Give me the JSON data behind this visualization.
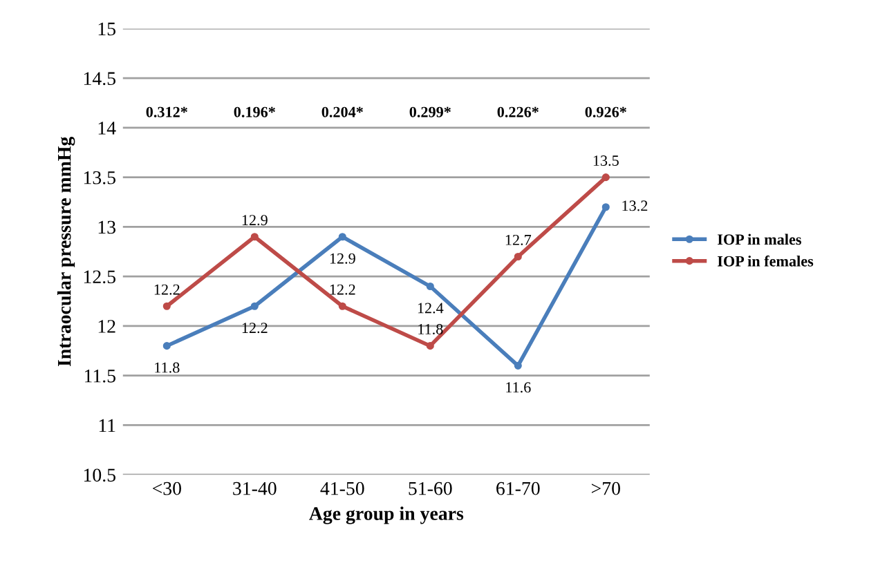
{
  "chart_data": {
    "type": "line",
    "xlabel": "Age group in years",
    "ylabel": "Intraocular pressure mmHg",
    "categories": [
      "<30",
      "31-40",
      "41-50",
      "51-60",
      "61-70",
      ">70"
    ],
    "series": [
      {
        "name": "IOP in males",
        "color": "#4a7ebb",
        "values": [
          11.8,
          12.2,
          12.9,
          12.4,
          11.6,
          13.2
        ]
      },
      {
        "name": "IOP in females",
        "color": "#be4b48",
        "values": [
          12.2,
          12.9,
          12.2,
          11.8,
          12.7,
          13.5
        ]
      }
    ],
    "ylim": [
      10.5,
      15
    ],
    "yticks": [
      10.5,
      11,
      11.5,
      12,
      12.5,
      13,
      13.5,
      14,
      14.5,
      15
    ],
    "grid": "y",
    "legend": "right",
    "marker": "circle",
    "data_labels": true,
    "annotations": [
      "0.312*",
      "0.196*",
      "0.204*",
      "0.299*",
      "0.226*",
      "0.926*"
    ]
  }
}
